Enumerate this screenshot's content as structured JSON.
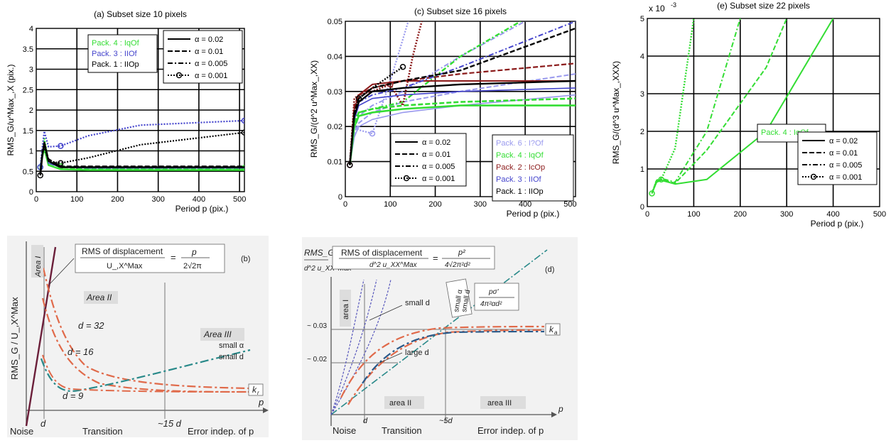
{
  "chart_data": [
    {
      "id": "a",
      "type": "line",
      "title": "(a) Subset size 10 pixels",
      "xlabel": "Period p (pix.)",
      "ylabel": "RMS_G/u^Max_,X (pix.)",
      "xlim": [
        0,
        512
      ],
      "ylim": [
        0,
        4
      ],
      "xticks": [
        "0",
        "100",
        "200",
        "300",
        "400",
        "500"
      ],
      "yticks": [
        "0",
        "0.5",
        "1",
        "1.5",
        "2",
        "2.5",
        "3",
        "3.5",
        "4"
      ],
      "grid": true,
      "legend_packages": [
        {
          "label": "Pack. 4 : IqOf",
          "color": "#33dd33"
        },
        {
          "label": "Pack. 3 : IIOf",
          "color": "#4444cc"
        },
        {
          "label": "Pack. 1 : IIOp",
          "color": "#000000"
        }
      ],
      "legend_alpha": [
        "α = 0.02",
        "α = 0.01",
        "α = 0.005",
        "α = 0.001"
      ],
      "series": [
        {
          "color": "#33dd33",
          "dash": "solid",
          "width": 2.4,
          "x": [
            10,
            15,
            20,
            30,
            60,
            128,
            256,
            512
          ],
          "y": [
            0.55,
            0.85,
            1.05,
            0.65,
            0.55,
            0.53,
            0.53,
            0.53
          ]
        },
        {
          "color": "#33dd33",
          "dash": "dash",
          "width": 2.4,
          "x": [
            10,
            15,
            20,
            30,
            60,
            128,
            256,
            512
          ],
          "y": [
            0.6,
            0.9,
            1.15,
            0.7,
            0.6,
            0.56,
            0.56,
            0.56
          ]
        },
        {
          "color": "#33dd33",
          "dash": "dot",
          "width": 2.4,
          "x": [
            10,
            15,
            20,
            30,
            60,
            128,
            256,
            512
          ],
          "y": [
            0.6,
            1.0,
            1.3,
            0.75,
            0.62,
            0.58,
            0.58,
            0.58
          ],
          "markers": true
        },
        {
          "color": "#4444cc",
          "dash": "solid",
          "width": 1.4,
          "x": [
            10,
            15,
            20,
            30,
            60,
            128,
            256,
            512
          ],
          "y": [
            0.55,
            0.95,
            1.2,
            0.7,
            0.6,
            0.58,
            0.58,
            0.58
          ]
        },
        {
          "color": "#4444cc",
          "dash": "dot",
          "width": 2.2,
          "x": [
            10,
            15,
            20,
            30,
            60,
            128,
            256,
            512
          ],
          "y": [
            0.6,
            1.1,
            1.48,
            1.1,
            1.12,
            1.37,
            1.63,
            1.74
          ],
          "markers": true
        },
        {
          "color": "#000000",
          "dash": "solid",
          "width": 2.6,
          "x": [
            10,
            15,
            20,
            30,
            60,
            128,
            256,
            512
          ],
          "y": [
            0.4,
            0.9,
            1.2,
            0.75,
            0.6,
            0.6,
            0.6,
            0.6
          ]
        },
        {
          "color": "#000000",
          "dash": "dash",
          "width": 2.2,
          "x": [
            10,
            15,
            20,
            30,
            60,
            128,
            256,
            512
          ],
          "y": [
            0.45,
            0.95,
            1.15,
            0.8,
            0.62,
            0.62,
            0.62,
            0.62
          ]
        },
        {
          "color": "#000000",
          "dash": "dot",
          "width": 2.2,
          "x": [
            10,
            15,
            20,
            30,
            60,
            128,
            256,
            512
          ],
          "y": [
            0.4,
            0.9,
            1.1,
            0.75,
            0.7,
            0.83,
            1.15,
            1.45
          ],
          "markers": true
        }
      ]
    },
    {
      "id": "c",
      "type": "line",
      "title": "(c) Subset size 16 pixels",
      "xlabel": "Period p (pix.)",
      "ylabel": "RMS_G/(d^2 u^Max_,XX)",
      "xlim": [
        0,
        512
      ],
      "ylim": [
        0,
        0.05
      ],
      "xticks": [
        "0",
        "100",
        "200",
        "300",
        "400",
        "500"
      ],
      "yticks": [
        "0",
        "0.01",
        "0.02",
        "0.03",
        "0.04",
        "0.05"
      ],
      "grid": true,
      "legend_packages": [
        {
          "label": "Pack. 6 : I?Of",
          "color": "#9999ee"
        },
        {
          "label": "Pack. 4 : IqOf",
          "color": "#33dd33"
        },
        {
          "label": "Pack. 2 : IcOp",
          "color": "#8b1a1a"
        },
        {
          "label": "Pack. 3 : IIOf",
          "color": "#4444cc"
        },
        {
          "label": "Pack. 1 : IIOp",
          "color": "#000000"
        }
      ],
      "legend_alpha": [
        "α = 0.02",
        "α = 0.01",
        "α = 0.005",
        "α = 0.001"
      ],
      "series": [
        {
          "color": "#9999ee",
          "dash": "solid",
          "width": 1.6,
          "x": [
            10,
            20,
            30,
            60,
            128,
            256,
            512
          ],
          "y": [
            0.009,
            0.017,
            0.02,
            0.022,
            0.024,
            0.026,
            0.029
          ]
        },
        {
          "color": "#9999ee",
          "dash": "dash",
          "width": 2,
          "x": [
            10,
            20,
            30,
            60,
            128,
            256,
            512
          ],
          "y": [
            0.009,
            0.018,
            0.021,
            0.024,
            0.027,
            0.03,
            0.035
          ]
        },
        {
          "color": "#9999ee",
          "dash": "dashdot",
          "width": 2,
          "x": [
            10,
            20,
            30,
            60,
            128,
            256,
            400
          ],
          "y": [
            0.009,
            0.019,
            0.023,
            0.026,
            0.03,
            0.04,
            0.05
          ]
        },
        {
          "color": "#9999ee",
          "dash": "dot",
          "width": 2.2,
          "x": [
            10,
            20,
            30,
            60,
            100,
            140
          ],
          "y": [
            0.009,
            0.02,
            0.019,
            0.018,
            0.033,
            0.05
          ],
          "markers": true
        },
        {
          "color": "#33dd33",
          "dash": "solid",
          "width": 2.6,
          "x": [
            10,
            20,
            30,
            60,
            128,
            256,
            512
          ],
          "y": [
            0.009,
            0.02,
            0.023,
            0.024,
            0.025,
            0.026,
            0.026
          ]
        },
        {
          "color": "#33dd33",
          "dash": "dash",
          "width": 2.6,
          "x": [
            10,
            20,
            30,
            60,
            128,
            256,
            512
          ],
          "y": [
            0.009,
            0.021,
            0.024,
            0.025,
            0.026,
            0.027,
            0.028
          ]
        },
        {
          "color": "#33dd33",
          "dash": "dashdot",
          "width": 2.4,
          "x": [
            10,
            20,
            30,
            60,
            128,
            256,
            390
          ],
          "y": [
            0.009,
            0.022,
            0.024,
            0.025,
            0.027,
            0.04,
            0.05
          ]
        },
        {
          "color": "#8b1a1a",
          "dash": "solid",
          "width": 2,
          "x": [
            10,
            20,
            30,
            60,
            128,
            256,
            512
          ],
          "y": [
            0.009,
            0.025,
            0.029,
            0.032,
            0.033,
            0.033,
            0.033
          ]
        },
        {
          "color": "#8b1a1a",
          "dash": "dash",
          "width": 2.2,
          "x": [
            10,
            20,
            30,
            60,
            128,
            256,
            512
          ],
          "y": [
            0.009,
            0.026,
            0.029,
            0.031,
            0.033,
            0.035,
            0.038
          ]
        },
        {
          "color": "#8b1a1a",
          "dash": "dot",
          "width": 2.6,
          "x": [
            10,
            20,
            30,
            60,
            100,
            128,
            150,
            170
          ],
          "y": [
            0.009,
            0.028,
            0.029,
            0.03,
            0.032,
            0.026,
            0.04,
            0.05
          ],
          "markers": true
        },
        {
          "color": "#4444cc",
          "dash": "solid",
          "width": 1.6,
          "x": [
            10,
            20,
            30,
            60,
            128,
            256,
            512
          ],
          "y": [
            0.009,
            0.022,
            0.026,
            0.028,
            0.029,
            0.03,
            0.031
          ]
        },
        {
          "color": "#4444cc",
          "dash": "dashdot",
          "width": 2,
          "x": [
            10,
            20,
            30,
            60,
            128,
            256,
            512
          ],
          "y": [
            0.009,
            0.023,
            0.027,
            0.029,
            0.031,
            0.037,
            0.05
          ]
        },
        {
          "color": "#000000",
          "dash": "solid",
          "width": 2.4,
          "x": [
            10,
            20,
            30,
            60,
            128,
            256,
            512
          ],
          "y": [
            0.009,
            0.023,
            0.027,
            0.03,
            0.031,
            0.032,
            0.033
          ]
        },
        {
          "color": "#000000",
          "dash": "dash",
          "width": 2.4,
          "x": [
            10,
            20,
            30,
            60,
            128,
            256,
            512
          ],
          "y": [
            0.009,
            0.024,
            0.028,
            0.031,
            0.033,
            0.036,
            0.048
          ]
        },
        {
          "color": "#000000",
          "dash": "dot",
          "width": 2.4,
          "x": [
            10,
            20,
            30,
            60,
            128
          ],
          "y": [
            0.009,
            0.024,
            0.028,
            0.031,
            0.037
          ],
          "markers": true
        }
      ]
    },
    {
      "id": "e",
      "type": "line",
      "title": "(e) Subset size 22 pixels",
      "xlabel": "Period p (pix.)",
      "ylabel": "RMS_G/(d^3 u^Max_,XXX)",
      "exponent_label": "x 10",
      "exponent_power": "-3",
      "xlim": [
        0,
        500
      ],
      "ylim": [
        0,
        5
      ],
      "xticks": [
        "0",
        "100",
        "200",
        "300",
        "400",
        "500"
      ],
      "yticks": [
        "0",
        "1",
        "2",
        "3",
        "4",
        "5"
      ],
      "grid": true,
      "legend_packages": [
        {
          "label": "Pack. 4 : IqOf",
          "color": "#33dd33"
        }
      ],
      "legend_alpha": [
        "α = 0.02",
        "α = 0.01",
        "α = 0.005",
        "α = 0.001"
      ],
      "series": [
        {
          "color": "#33dd33",
          "dash": "solid",
          "width": 2,
          "x": [
            10,
            20,
            30,
            60,
            128,
            256,
            400
          ],
          "y": [
            0.35,
            0.65,
            0.7,
            0.6,
            0.72,
            2.0,
            5.0
          ]
        },
        {
          "color": "#33dd33",
          "dash": "dash",
          "width": 2,
          "x": [
            10,
            20,
            30,
            60,
            128,
            256,
            300
          ],
          "y": [
            0.35,
            0.68,
            0.72,
            0.62,
            1.5,
            3.7,
            5.0
          ]
        },
        {
          "color": "#33dd33",
          "dash": "dashdot",
          "width": 2,
          "x": [
            10,
            20,
            30,
            60,
            128,
            200
          ],
          "y": [
            0.35,
            0.7,
            0.75,
            0.65,
            2.0,
            5.0
          ]
        },
        {
          "color": "#33dd33",
          "dash": "dot",
          "width": 2.4,
          "x": [
            10,
            20,
            30,
            60,
            100
          ],
          "y": [
            0.35,
            0.7,
            0.72,
            1.55,
            5.0
          ],
          "markers": true
        }
      ]
    }
  ],
  "sketch_b": {
    "label": "(b)",
    "ylabel": "RMS_G / U_,X^Max",
    "formula_text": "RMS of displacement",
    "formula_den": "U_,X^Max",
    "formula_rhs_num": "p",
    "formula_rhs_den": "2√2π",
    "area1": "Area I",
    "area2": "Area II",
    "area3": "Area III",
    "d32": "d = 32",
    "d16": "d = 16",
    "d9": "d = 9",
    "small_a": "small α",
    "small_d": "small d",
    "kr": "k",
    "kr_sub": "r",
    "x_noise": "Noise",
    "x_d": "d",
    "x_transition": "Transition",
    "x_15d": "~15 d",
    "x_indep": "Error indep. of p",
    "p_axis": "p"
  },
  "sketch_d": {
    "label": "(d)",
    "ylabel_top": "RMS_G",
    "ylabel_bottom": "d^2 u_XX^Max",
    "formula_text": "RMS of displacement",
    "formula_rhs_num": "p²",
    "formula_rhs_den": "4√2π²d²",
    "box_small_a": "small α",
    "box_small_d": "small d",
    "box_formula_num": "pσ'",
    "box_formula_den": "4π²αd²",
    "area1": "area I",
    "area2": "area II",
    "area3": "area III",
    "small_d_label": "small d",
    "large_d_label": "large d",
    "y003": "~ 0.03",
    "y002": "~ 0.02",
    "ka": "k",
    "ka_sub": "a",
    "x_noise": "Noise",
    "x_d": "d",
    "x_transition": "Transition",
    "x_5d": "~5d",
    "x_indep": "Error indep. of p",
    "p_axis": "p"
  }
}
